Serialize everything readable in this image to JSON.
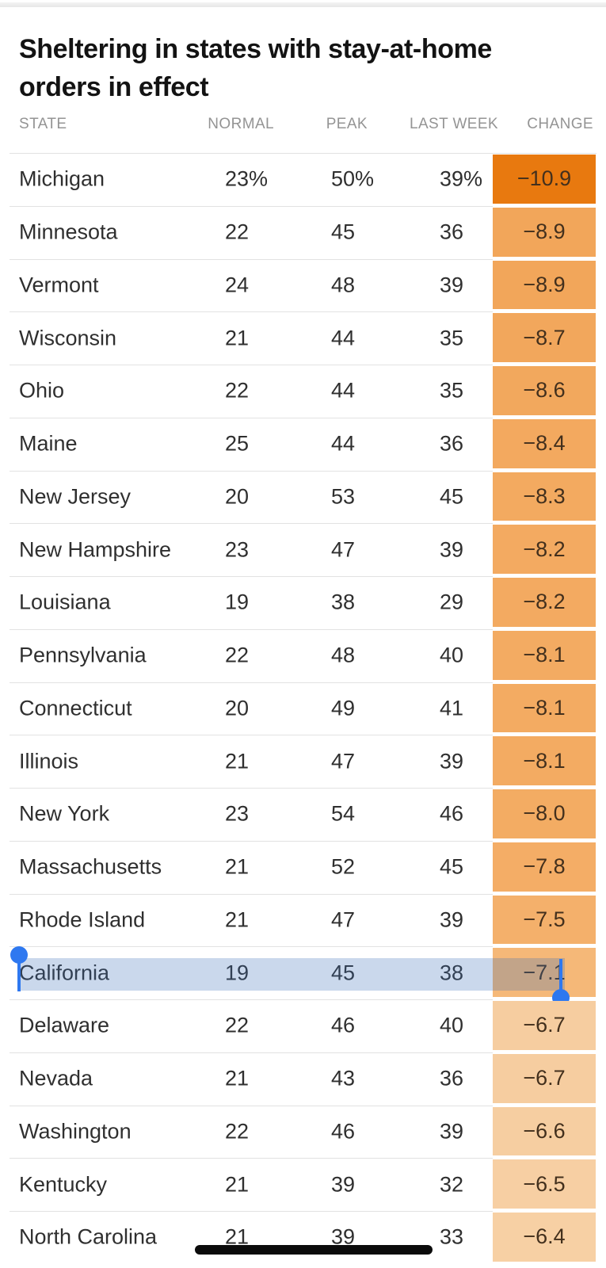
{
  "header": {
    "title": "Sheltering in states with stay-at-home orders in effect"
  },
  "table": {
    "columns": [
      "STATE",
      "NORMAL",
      "PEAK",
      "LAST WEEK",
      "CHANGE"
    ],
    "rows": [
      {
        "state": "Michigan",
        "normal": "23",
        "normal_suffix": "%",
        "peak": "50",
        "peak_suffix": "%",
        "week": "39",
        "week_suffix": "%",
        "change": "−10.9",
        "change_color": "#e8790f"
      },
      {
        "state": "Minnesota",
        "normal": "22",
        "normal_suffix": "",
        "peak": "45",
        "peak_suffix": "",
        "week": "36",
        "week_suffix": "",
        "change": "−8.9",
        "change_color": "#f2a65a"
      },
      {
        "state": "Vermont",
        "normal": "24",
        "normal_suffix": "",
        "peak": "48",
        "peak_suffix": "",
        "week": "39",
        "week_suffix": "",
        "change": "−8.9",
        "change_color": "#f2a65a"
      },
      {
        "state": "Wisconsin",
        "normal": "21",
        "normal_suffix": "",
        "peak": "44",
        "peak_suffix": "",
        "week": "35",
        "week_suffix": "",
        "change": "−8.7",
        "change_color": "#f2a75c"
      },
      {
        "state": "Ohio",
        "normal": "22",
        "normal_suffix": "",
        "peak": "44",
        "peak_suffix": "",
        "week": "35",
        "week_suffix": "",
        "change": "−8.6",
        "change_color": "#f2a85d"
      },
      {
        "state": "Maine",
        "normal": "25",
        "normal_suffix": "",
        "peak": "44",
        "peak_suffix": "",
        "week": "36",
        "week_suffix": "",
        "change": "−8.4",
        "change_color": "#f3a95f"
      },
      {
        "state": "New Jersey",
        "normal": "20",
        "normal_suffix": "",
        "peak": "53",
        "peak_suffix": "",
        "week": "45",
        "week_suffix": "",
        "change": "−8.3",
        "change_color": "#f3aa60"
      },
      {
        "state": "New Hampshire",
        "normal": "23",
        "normal_suffix": "",
        "peak": "47",
        "peak_suffix": "",
        "week": "39",
        "week_suffix": "",
        "change": "−8.2",
        "change_color": "#f3aa61"
      },
      {
        "state": "Louisiana",
        "normal": "19",
        "normal_suffix": "",
        "peak": "38",
        "peak_suffix": "",
        "week": "29",
        "week_suffix": "",
        "change": "−8.2",
        "change_color": "#f3aa61"
      },
      {
        "state": "Pennsylvania",
        "normal": "22",
        "normal_suffix": "",
        "peak": "48",
        "peak_suffix": "",
        "week": "40",
        "week_suffix": "",
        "change": "−8.1",
        "change_color": "#f3ab62"
      },
      {
        "state": "Connecticut",
        "normal": "20",
        "normal_suffix": "",
        "peak": "49",
        "peak_suffix": "",
        "week": "41",
        "week_suffix": "",
        "change": "−8.1",
        "change_color": "#f3ab62"
      },
      {
        "state": "Illinois",
        "normal": "21",
        "normal_suffix": "",
        "peak": "47",
        "peak_suffix": "",
        "week": "39",
        "week_suffix": "",
        "change": "−8.1",
        "change_color": "#f3ab62"
      },
      {
        "state": "New York",
        "normal": "23",
        "normal_suffix": "",
        "peak": "54",
        "peak_suffix": "",
        "week": "46",
        "week_suffix": "",
        "change": "−8.0",
        "change_color": "#f3ac63"
      },
      {
        "state": "Massachusetts",
        "normal": "21",
        "normal_suffix": "",
        "peak": "52",
        "peak_suffix": "",
        "week": "45",
        "week_suffix": "",
        "change": "−7.8",
        "change_color": "#f4ad66"
      },
      {
        "state": "Rhode Island",
        "normal": "21",
        "normal_suffix": "",
        "peak": "47",
        "peak_suffix": "",
        "week": "39",
        "week_suffix": "",
        "change": "−7.5",
        "change_color": "#f4b06b"
      },
      {
        "state": "California",
        "normal": "19",
        "normal_suffix": "",
        "peak": "45",
        "peak_suffix": "",
        "week": "38",
        "week_suffix": "",
        "change": "−7.1",
        "change_color": "#f5b878"
      },
      {
        "state": "Delaware",
        "normal": "22",
        "normal_suffix": "",
        "peak": "46",
        "peak_suffix": "",
        "week": "40",
        "week_suffix": "",
        "change": "−6.7",
        "change_color": "#f6cda0"
      },
      {
        "state": "Nevada",
        "normal": "21",
        "normal_suffix": "",
        "peak": "43",
        "peak_suffix": "",
        "week": "36",
        "week_suffix": "",
        "change": "−6.7",
        "change_color": "#f6cda0"
      },
      {
        "state": "Washington",
        "normal": "22",
        "normal_suffix": "",
        "peak": "46",
        "peak_suffix": "",
        "week": "39",
        "week_suffix": "",
        "change": "−6.6",
        "change_color": "#f6cea1"
      },
      {
        "state": "Kentucky",
        "normal": "21",
        "normal_suffix": "",
        "peak": "39",
        "peak_suffix": "",
        "week": "32",
        "week_suffix": "",
        "change": "−6.5",
        "change_color": "#f7cfa3"
      },
      {
        "state": "North Carolina",
        "normal": "21",
        "normal_suffix": "",
        "peak": "39",
        "peak_suffix": "",
        "week": "33",
        "week_suffix": "",
        "change": "−6.4",
        "change_color": "#f7d0a4"
      }
    ]
  },
  "selection": {
    "selected_row_index": 15,
    "selected_row_state": "California",
    "highlight_color": "rgba(59,112,184,0.27)",
    "handle_color": "#2e78f0"
  },
  "chart_data": {
    "type": "table",
    "title": "Sheltering in states with stay-at-home orders in effect",
    "columns": [
      "STATE",
      "NORMAL",
      "PEAK",
      "LAST WEEK",
      "CHANGE"
    ],
    "series": [
      {
        "name": "Michigan",
        "values": [
          23,
          50,
          39,
          -10.9
        ]
      },
      {
        "name": "Minnesota",
        "values": [
          22,
          45,
          36,
          -8.9
        ]
      },
      {
        "name": "Vermont",
        "values": [
          24,
          48,
          39,
          -8.9
        ]
      },
      {
        "name": "Wisconsin",
        "values": [
          21,
          44,
          35,
          -8.7
        ]
      },
      {
        "name": "Ohio",
        "values": [
          22,
          44,
          35,
          -8.6
        ]
      },
      {
        "name": "Maine",
        "values": [
          25,
          44,
          36,
          -8.4
        ]
      },
      {
        "name": "New Jersey",
        "values": [
          20,
          53,
          45,
          -8.3
        ]
      },
      {
        "name": "New Hampshire",
        "values": [
          23,
          47,
          39,
          -8.2
        ]
      },
      {
        "name": "Louisiana",
        "values": [
          19,
          38,
          29,
          -8.2
        ]
      },
      {
        "name": "Pennsylvania",
        "values": [
          22,
          48,
          40,
          -8.1
        ]
      },
      {
        "name": "Connecticut",
        "values": [
          20,
          49,
          41,
          -8.1
        ]
      },
      {
        "name": "Illinois",
        "values": [
          21,
          47,
          39,
          -8.1
        ]
      },
      {
        "name": "New York",
        "values": [
          23,
          54,
          46,
          -8.0
        ]
      },
      {
        "name": "Massachusetts",
        "values": [
          21,
          52,
          45,
          -7.8
        ]
      },
      {
        "name": "Rhode Island",
        "values": [
          21,
          47,
          39,
          -7.5
        ]
      },
      {
        "name": "California",
        "values": [
          19,
          45,
          38,
          -7.1
        ]
      },
      {
        "name": "Delaware",
        "values": [
          22,
          46,
          40,
          -6.7
        ]
      },
      {
        "name": "Nevada",
        "values": [
          21,
          43,
          36,
          -6.7
        ]
      },
      {
        "name": "Washington",
        "values": [
          22,
          46,
          39,
          -6.6
        ]
      },
      {
        "name": "Kentucky",
        "values": [
          21,
          39,
          32,
          -6.5
        ]
      },
      {
        "name": "North Carolina",
        "values": [
          21,
          39,
          33,
          -6.4
        ]
      }
    ]
  }
}
